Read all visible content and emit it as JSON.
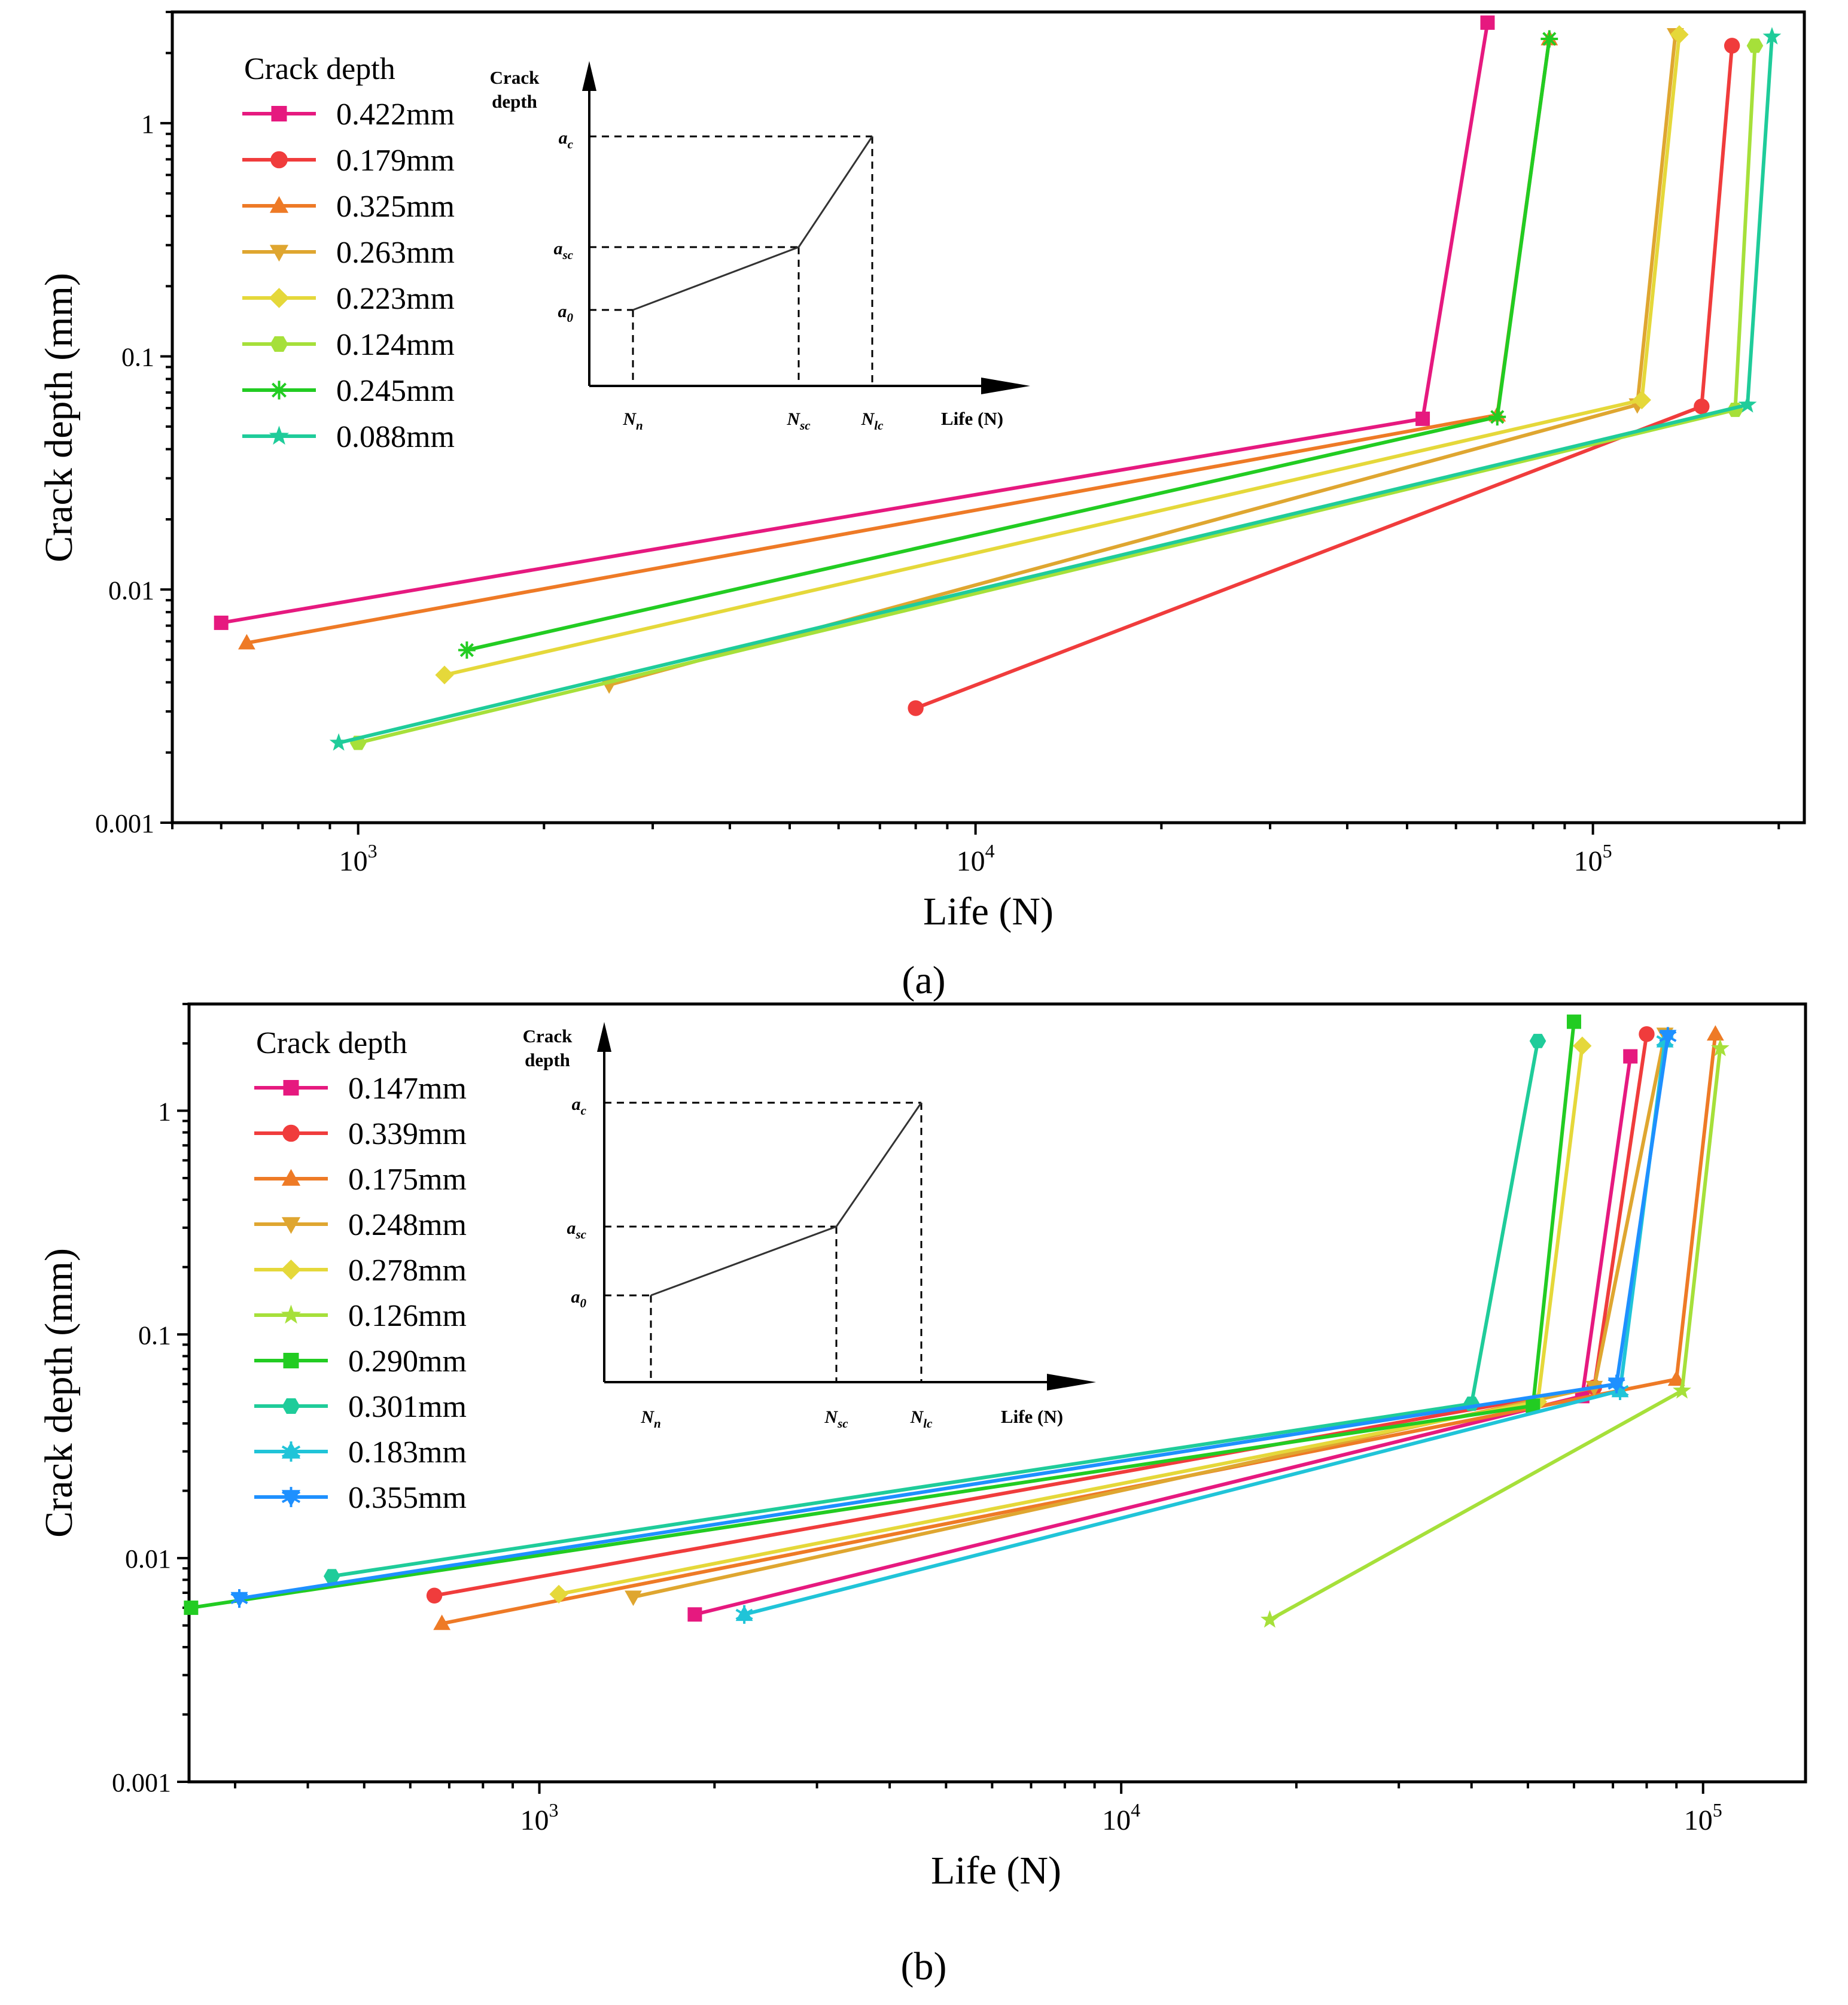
{
  "chart_data": [
    {
      "type": "line",
      "panel_label": "a",
      "xlabel": "Life (N)",
      "ylabel": "Crack depth (mm)",
      "xscale": "log",
      "yscale": "log",
      "xlim": [
        500,
        220000
      ],
      "ylim": [
        0.001,
        3
      ],
      "xticks": [
        {
          "v": 1000,
          "label": "10",
          "exp": "3"
        },
        {
          "v": 10000,
          "label": "10",
          "exp": "4"
        },
        {
          "v": 100000,
          "label": "10",
          "exp": "5"
        }
      ],
      "yticks": [
        {
          "v": 0.001,
          "label": "0.001"
        },
        {
          "v": 0.01,
          "label": "0.01"
        },
        {
          "v": 0.1,
          "label": "0.1"
        },
        {
          "v": 1,
          "label": "1"
        }
      ],
      "legend_title": "Crack depth",
      "legend_position": "top-left",
      "series": [
        {
          "name": "0.422mm",
          "color": "#e6197f",
          "marker": "square",
          "x": [
            600,
            53000,
            67500
          ],
          "y": [
            0.0072,
            0.054,
            2.7
          ]
        },
        {
          "name": "0.179mm",
          "color": "#f03c3c",
          "marker": "circle",
          "x": [
            8000,
            150000,
            168000
          ],
          "y": [
            0.0031,
            0.061,
            2.15
          ]
        },
        {
          "name": "0.325mm",
          "color": "#ee7a26",
          "marker": "triangle-up",
          "x": [
            660,
            70000,
            85000
          ],
          "y": [
            0.0059,
            0.056,
            2.3
          ]
        },
        {
          "name": "0.263mm",
          "color": "#dfa630",
          "marker": "triangle-down",
          "x": [
            2550,
            118000,
            136000
          ],
          "y": [
            0.0039,
            0.062,
            2.4
          ]
        },
        {
          "name": "0.223mm",
          "color": "#e5d83a",
          "marker": "diamond",
          "x": [
            1380,
            120000,
            138000
          ],
          "y": [
            0.0043,
            0.065,
            2.4
          ]
        },
        {
          "name": "0.124mm",
          "color": "#a6e03a",
          "marker": "hexagon",
          "x": [
            1000,
            170000,
            183000
          ],
          "y": [
            0.0022,
            0.059,
            2.15
          ]
        },
        {
          "name": "0.245mm",
          "color": "#22cc22",
          "marker": "asterisk",
          "x": [
            1500,
            70000,
            85000
          ],
          "y": [
            0.0055,
            0.055,
            2.3
          ]
        },
        {
          "name": "0.088mm",
          "color": "#1fcc9a",
          "marker": "star",
          "x": [
            930,
            178000,
            195000
          ],
          "y": [
            0.0022,
            0.062,
            2.35
          ]
        }
      ],
      "inset": {
        "ylabel": "Crack depth",
        "xlabel": "Life (N)",
        "y_levels": [
          "a_0",
          "a_sc",
          "a_c"
        ],
        "x_levels": [
          "N_n",
          "N_sc",
          "N_lc"
        ]
      }
    },
    {
      "type": "line",
      "panel_label": "b",
      "xlabel": "Life (N)",
      "ylabel": "Crack depth (mm)",
      "xscale": "log",
      "yscale": "log",
      "xlim": [
        250,
        150000
      ],
      "ylim": [
        0.001,
        3
      ],
      "xticks": [
        {
          "v": 1000,
          "label": "10",
          "exp": "3"
        },
        {
          "v": 10000,
          "label": "10",
          "exp": "4"
        },
        {
          "v": 100000,
          "label": "10",
          "exp": "5"
        }
      ],
      "yticks": [
        {
          "v": 0.001,
          "label": "0.001"
        },
        {
          "v": 0.01,
          "label": "0.01"
        },
        {
          "v": 0.1,
          "label": "0.1"
        },
        {
          "v": 1,
          "label": "1"
        }
      ],
      "legend_title": "Crack depth",
      "legend_position": "top-left",
      "series": [
        {
          "name": "0.147mm",
          "color": "#e6197f",
          "marker": "square",
          "x": [
            1850,
            62000,
            75000
          ],
          "y": [
            0.0056,
            0.053,
            1.75
          ]
        },
        {
          "name": "0.339mm",
          "color": "#f03c3c",
          "marker": "circle",
          "x": [
            660,
            65000,
            80000
          ],
          "y": [
            0.0068,
            0.058,
            2.2
          ]
        },
        {
          "name": "0.175mm",
          "color": "#ee7a26",
          "marker": "triangle-up",
          "x": [
            680,
            90000,
            105000
          ],
          "y": [
            0.0051,
            0.063,
            2.2
          ]
        },
        {
          "name": "0.248mm",
          "color": "#dfa630",
          "marker": "triangle-down",
          "x": [
            1450,
            65000,
            86000
          ],
          "y": [
            0.0067,
            0.058,
            2.2
          ]
        },
        {
          "name": "0.278mm",
          "color": "#e5d83a",
          "marker": "diamond",
          "x": [
            1080,
            52000,
            62000
          ],
          "y": [
            0.0069,
            0.05,
            1.95
          ]
        },
        {
          "name": "0.126mm",
          "color": "#a6e03a",
          "marker": "star",
          "x": [
            18000,
            92000,
            107000
          ],
          "y": [
            0.0053,
            0.056,
            1.9
          ]
        },
        {
          "name": "0.290mm",
          "color": "#22cc22",
          "marker": "square",
          "x": [
            252,
            51000,
            60000
          ],
          "y": [
            0.006,
            0.048,
            2.5
          ]
        },
        {
          "name": "0.301mm",
          "color": "#1fcc9a",
          "marker": "hexagon",
          "x": [
            440,
            40000,
            52000
          ],
          "y": [
            0.0083,
            0.049,
            2.05
          ]
        },
        {
          "name": "0.183mm",
          "color": "#20c4d8",
          "marker": "triangle-up-x",
          "x": [
            2250,
            72000,
            86000
          ],
          "y": [
            0.0056,
            0.056,
            2.05
          ]
        },
        {
          "name": "0.355mm",
          "color": "#1e90ff",
          "marker": "triangle-down-x",
          "x": [
            305,
            71000,
            87000
          ],
          "y": [
            0.0066,
            0.06,
            2.15
          ]
        }
      ],
      "inset": {
        "ylabel": "Crack depth",
        "xlabel": "Life (N)",
        "y_levels": [
          "a_0",
          "a_sc",
          "a_c"
        ],
        "x_levels": [
          "N_n",
          "N_sc",
          "N_lc"
        ]
      }
    }
  ],
  "captions": [
    "(a)",
    "(b)"
  ]
}
